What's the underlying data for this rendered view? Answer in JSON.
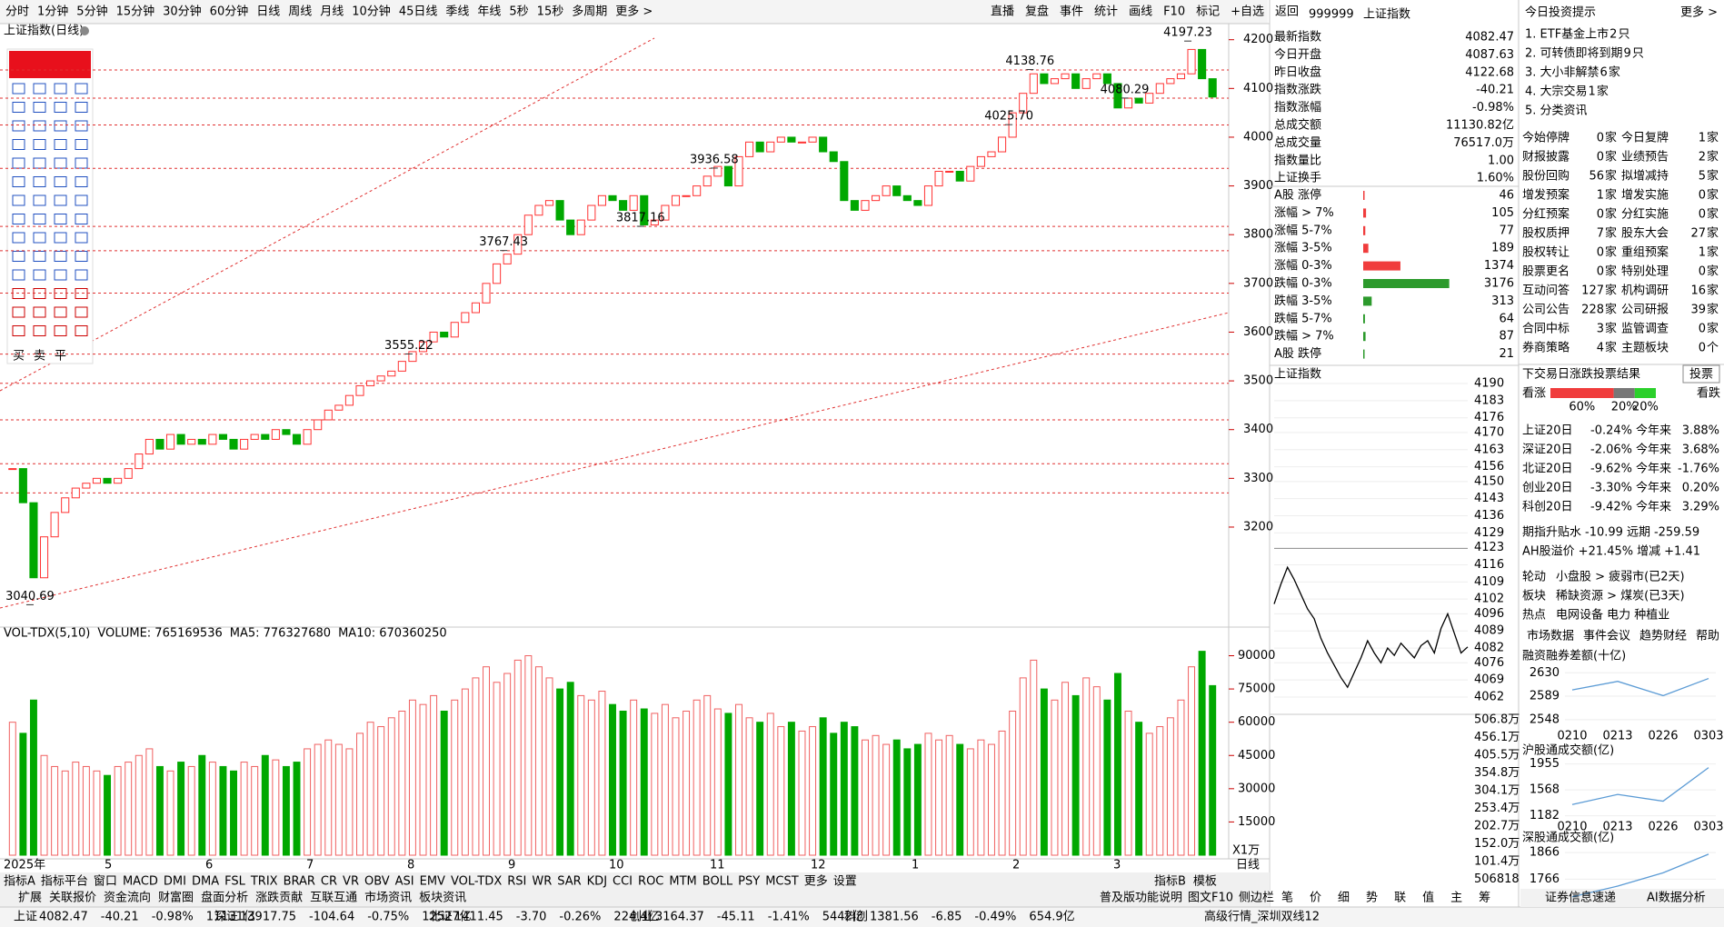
{
  "toolbar": {
    "periods": [
      "分时",
      "1分钟",
      "5分钟",
      "15分钟",
      "30分钟",
      "60分钟",
      "日线",
      "周线",
      "月线",
      "10分钟",
      "45日线",
      "季线",
      "年线",
      "5秒",
      "15秒",
      "多周期",
      "更多 >"
    ],
    "active_index": 6,
    "tools": [
      "直播",
      "复盘",
      "事件",
      "统计",
      "画线",
      "F10",
      "标记",
      "+自选",
      "返回"
    ]
  },
  "main": {
    "title": "上证指数(日线)",
    "vol_name": "VOL-TDX(5,10)",
    "vol_volume": "VOLUME: 765169536",
    "vol_ma5": "MA5: 776327680",
    "vol_ma10": "MA10: 670360250",
    "months": [
      "2025年",
      "5",
      "6",
      "7",
      "8",
      "9",
      "10",
      "11",
      "12",
      "1",
      "2",
      "3"
    ],
    "unit": "X1万",
    "period_tag": "日线",
    "trade": [
      "买",
      "卖",
      "平"
    ]
  },
  "quote": {
    "code": "999999",
    "name": "上证指数",
    "rows": [
      [
        "最新指数",
        "4082.47"
      ],
      [
        "今日开盘",
        "4087.63"
      ],
      [
        "昨日收盘",
        "4122.68"
      ],
      [
        "指数涨跌",
        "-40.21"
      ],
      [
        "指数涨幅",
        "-0.98%"
      ],
      [
        "总成交额",
        "11130.82亿"
      ],
      [
        "总成交量",
        "76517.0万"
      ],
      [
        "指数量比",
        "1.00"
      ],
      [
        "上证换手",
        "1.60%"
      ]
    ]
  },
  "intraday": {
    "title": "上证指数",
    "vol_labels": [
      "506.8万",
      "456.1万",
      "405.5万",
      "354.8万",
      "304.1万",
      "253.4万",
      "202.7万",
      "152.0万",
      "101.4万",
      "506818"
    ],
    "tabs": [
      "笔",
      "价",
      "细",
      "势",
      "联",
      "值",
      "主",
      "筹"
    ]
  },
  "tips": {
    "title": "今日投资提示",
    "more": "更多 >",
    "items": [
      [
        "1. ETF基金上市",
        "2",
        "只"
      ],
      [
        "2. 可转债即将到期",
        "9",
        "只"
      ],
      [
        "3. 大小非解禁",
        "6",
        "家"
      ],
      [
        "4. 大宗交易",
        "1",
        "家"
      ],
      [
        "5. 分类资讯",
        "",
        ""
      ]
    ]
  },
  "events": [
    [
      "今始停牌",
      "0",
      "家",
      "今日复牌",
      "1",
      "家"
    ],
    [
      "财报披露",
      "0",
      "家",
      "业绩预告",
      "2",
      "家"
    ],
    [
      "股份回购",
      "56",
      "家",
      "拟增减持",
      "5",
      "家"
    ],
    [
      "增发预案",
      "1",
      "家",
      "增发实施",
      "0",
      "家"
    ],
    [
      "分红预案",
      "0",
      "家",
      "分红实施",
      "0",
      "家"
    ],
    [
      "股权质押",
      "7",
      "家",
      "股东大会",
      "27",
      "家"
    ],
    [
      "股权转让",
      "0",
      "家",
      "重组预案",
      "1",
      "家"
    ],
    [
      "股票更名",
      "0",
      "家",
      "特别处理",
      "0",
      "家"
    ],
    [
      "互动问答",
      "127",
      "家",
      "机构调研",
      "16",
      "家"
    ],
    [
      "公司公告",
      "228",
      "家",
      "公司研报",
      "39",
      "家"
    ],
    [
      "合同中标",
      "3",
      "家",
      "监管调查",
      "0",
      "家"
    ],
    [
      "券商策略",
      "4",
      "家",
      "主题板块",
      "0",
      "个"
    ]
  ],
  "vote": {
    "title": "下交易日涨跌投票结果",
    "button": "投票",
    "up": "看涨",
    "down": "看跌",
    "shares": [
      60,
      20,
      20
    ],
    "share_labels": [
      "60%",
      "20%",
      "20%"
    ]
  },
  "perf": [
    [
      "上证20日",
      "-0.24%",
      "今年来",
      "3.88%"
    ],
    [
      "深证20日",
      "-2.06%",
      "今年来",
      "3.68%"
    ],
    [
      "北证20日",
      "-9.62%",
      "今年来",
      "-1.76%"
    ],
    [
      "创业20日",
      "-3.30%",
      "今年来",
      "0.20%"
    ],
    [
      "科创20日",
      "-9.42%",
      "今年来",
      "3.29%"
    ]
  ],
  "futures": [
    "期指升贴水",
    "-10.99",
    "远期",
    "-259.59"
  ],
  "ah": [
    "AH股溢价",
    "+21.45%",
    "增减",
    "+1.41"
  ],
  "rotation": [
    [
      "轮动",
      "小盘股 > 疲弱市(已2天)"
    ],
    [
      "板块",
      "稀缺资源 > 煤炭(已3天)"
    ],
    [
      "热点",
      "电网设备 电力 种植业"
    ]
  ],
  "market_tabs": [
    "市场数据",
    "事件会议",
    "趋势财经",
    "帮助"
  ],
  "footer_right": [
    "证券信息速递",
    "AI数据分析"
  ],
  "indicator_tabs": [
    "指标A",
    "指标平台",
    "窗口",
    "MACD",
    "DMI",
    "DMA",
    "FSL",
    "TRIX",
    "BRAR",
    "CR",
    "VR",
    "OBV",
    "ASI",
    "EMV",
    "VOL-TDX",
    "RSI",
    "WR",
    "SAR",
    "KDJ",
    "CCI",
    "ROC",
    "MTM",
    "BOLL",
    "PSY",
    "MCST",
    "更多",
    "设置"
  ],
  "indicator_right": [
    "指标B",
    "模板"
  ],
  "extra_tabs": [
    "扩展",
    "关联报价",
    "资金流向",
    "财富圈",
    "盘面分析",
    "涨跌贡献",
    "互联互通",
    "市场资讯",
    "板块资讯"
  ],
  "extra_right": [
    "普及版功能说明",
    "图文F10",
    "侧边栏"
  ],
  "status": [
    [
      "上证",
      "4082.47",
      "-40.21",
      "-0.98%",
      "11131亿"
    ],
    [
      "深证",
      "13917.75",
      "-104.64",
      "-0.75%",
      "12527亿"
    ],
    [
      "北证",
      "1411.45",
      "-3.70",
      "-0.26%",
      "224.4亿"
    ],
    [
      "创业",
      "3164.37",
      "-45.11",
      "-1.41%",
      "5442亿"
    ],
    [
      "科创",
      "1381.56",
      "-6.85",
      "-0.49%",
      "654.9亿"
    ]
  ],
  "status_tail": "高级行情_深圳双线12",
  "chart_data": [
    {
      "type": "candlestick",
      "ylim": [
        3006,
        4233
      ],
      "yticks": [
        3200,
        3300,
        3400,
        3500,
        3600,
        3700,
        3800,
        3900,
        4000,
        4100,
        4200
      ],
      "up_color": "#ff3232",
      "down_color": "#00a800",
      "values": [
        3320,
        3250,
        3096,
        3180,
        3230,
        3260,
        3280,
        3290,
        3300,
        3290,
        3300,
        3320,
        3350,
        3380,
        3360,
        3390,
        3370,
        3380,
        3370,
        3390,
        3380,
        3360,
        3380,
        3390,
        3380,
        3400,
        3390,
        3370,
        3400,
        3420,
        3440,
        3450,
        3470,
        3490,
        3500,
        3510,
        3520,
        3540,
        3560,
        3580,
        3600,
        3590,
        3620,
        3640,
        3660,
        3700,
        3740,
        3760,
        3800,
        3840,
        3860,
        3870,
        3830,
        3800,
        3830,
        3860,
        3880,
        3870,
        3850,
        3880,
        3820,
        3830,
        3860,
        3880,
        3880,
        3900,
        3920,
        3940,
        3900,
        3960,
        3990,
        3970,
        3990,
        4000,
        3990,
        3990,
        4000,
        3970,
        3950,
        3870,
        3850,
        3870,
        3880,
        3900,
        3880,
        3870,
        3860,
        3900,
        3930,
        3930,
        3910,
        3940,
        3960,
        3970,
        4000,
        4050,
        4090,
        4130,
        4110,
        4120,
        4130,
        4100,
        4120,
        4130,
        4110,
        4060,
        4080,
        4070,
        4090,
        4110,
        4120,
        4130,
        4180,
        4120,
        4082.47
      ],
      "annotations": [
        {
          "value": 4197.23,
          "label": "4197.23"
        },
        {
          "value": 4138.76,
          "label": "4138.76"
        },
        {
          "value": 4080.29,
          "label": "4080.29"
        },
        {
          "value": 4025.7,
          "label": "4025.70"
        },
        {
          "value": 3936.58,
          "label": "3936.58"
        },
        {
          "value": 3817.16,
          "label": "3817.16"
        },
        {
          "value": 3767.43,
          "label": "3767.43"
        },
        {
          "value": 3555.22,
          "label": "3555.22"
        },
        {
          "value": 3040.69,
          "label": "3040.69"
        }
      ],
      "levels": [
        4138,
        4080,
        4025,
        3936,
        3817,
        3767,
        3680,
        3555,
        3495,
        3420,
        3330,
        3270
      ]
    },
    {
      "type": "bar",
      "ylim": [
        0,
        98000
      ],
      "yticks": [
        15000,
        30000,
        45000,
        60000,
        75000,
        90000
      ],
      "values": [
        60000,
        55000,
        70000,
        45000,
        40000,
        38000,
        42000,
        40000,
        38000,
        36000,
        40000,
        42000,
        45000,
        48000,
        40000,
        38000,
        42000,
        40000,
        45000,
        42000,
        40000,
        38000,
        42000,
        40000,
        45000,
        43000,
        40000,
        42000,
        48000,
        50000,
        52000,
        50000,
        48000,
        55000,
        60000,
        58000,
        62000,
        65000,
        70000,
        68000,
        72000,
        65000,
        70000,
        75000,
        80000,
        85000,
        78000,
        82000,
        88000,
        90000,
        85000,
        80000,
        75000,
        78000,
        72000,
        70000,
        74000,
        68000,
        65000,
        70000,
        66000,
        64000,
        68000,
        62000,
        65000,
        70000,
        72000,
        66000,
        64000,
        68000,
        62000,
        60000,
        64000,
        58000,
        60000,
        56000,
        58000,
        62000,
        55000,
        60000,
        58000,
        52000,
        54000,
        50000,
        52000,
        48000,
        50000,
        55000,
        52000,
        54000,
        50000,
        48000,
        52000,
        50000,
        56000,
        65000,
        80000,
        88000,
        75000,
        70000,
        78000,
        72000,
        80000,
        76000,
        70000,
        82000,
        65000,
        60000,
        55000,
        58000,
        62000,
        70000,
        85000,
        92000,
        76517
      ]
    },
    {
      "type": "line",
      "ylim": [
        4059.4,
        4192.6
      ],
      "base": 4122.68,
      "yticks": [
        4190,
        4183,
        4176,
        4170,
        4163,
        4156,
        4150,
        4143,
        4136,
        4129,
        4123,
        4116,
        4109,
        4102,
        4096,
        4089,
        4082,
        4076,
        4069,
        4062
      ],
      "values": [
        4100,
        4108,
        4115,
        4110,
        4104,
        4098,
        4094,
        4086,
        4080,
        4075,
        4070,
        4066,
        4072,
        4078,
        4085,
        4080,
        4076,
        4082,
        4079,
        4084,
        4081,
        4078,
        4083,
        4085,
        4080,
        4090,
        4096,
        4088,
        4080,
        4082.47
      ]
    },
    {
      "type": "hbar",
      "categories": [
        "A股 涨停",
        "涨幅 > 7%",
        "涨幅 5-7%",
        "涨幅 3-5%",
        "涨幅 0-3%",
        "跌幅 0-3%",
        "跌幅 3-5%",
        "跌幅 5-7%",
        "跌幅 > 7%",
        "A股 跌停"
      ],
      "values": [
        46,
        105,
        77,
        189,
        1374,
        3176,
        313,
        64,
        87,
        21
      ]
    },
    {
      "type": "line",
      "title": "融资融券差额(十亿)",
      "categories": [
        "0210",
        "0213",
        "0226",
        "0303"
      ],
      "values": [
        2600,
        2615,
        2590,
        2620
      ],
      "ylim": [
        2535,
        2640
      ],
      "yticks": [
        2548,
        2589,
        2630
      ]
    },
    {
      "type": "line",
      "title": "沪股通成交额(亿)",
      "categories": [
        "0210",
        "0213",
        "0226",
        "0303"
      ],
      "values": [
        1350,
        1500,
        1400,
        1900
      ],
      "ylim": [
        1150,
        1990
      ],
      "yticks": [
        1182,
        1568,
        1955
      ]
    },
    {
      "type": "line",
      "title": "深股通成交额(亿)",
      "categories": [
        null,
        null,
        null,
        null
      ],
      "values": [
        1700,
        1740,
        1790,
        1860
      ],
      "ylim": [
        1740,
        1880
      ],
      "yticks": [
        1766,
        1866
      ]
    }
  ]
}
